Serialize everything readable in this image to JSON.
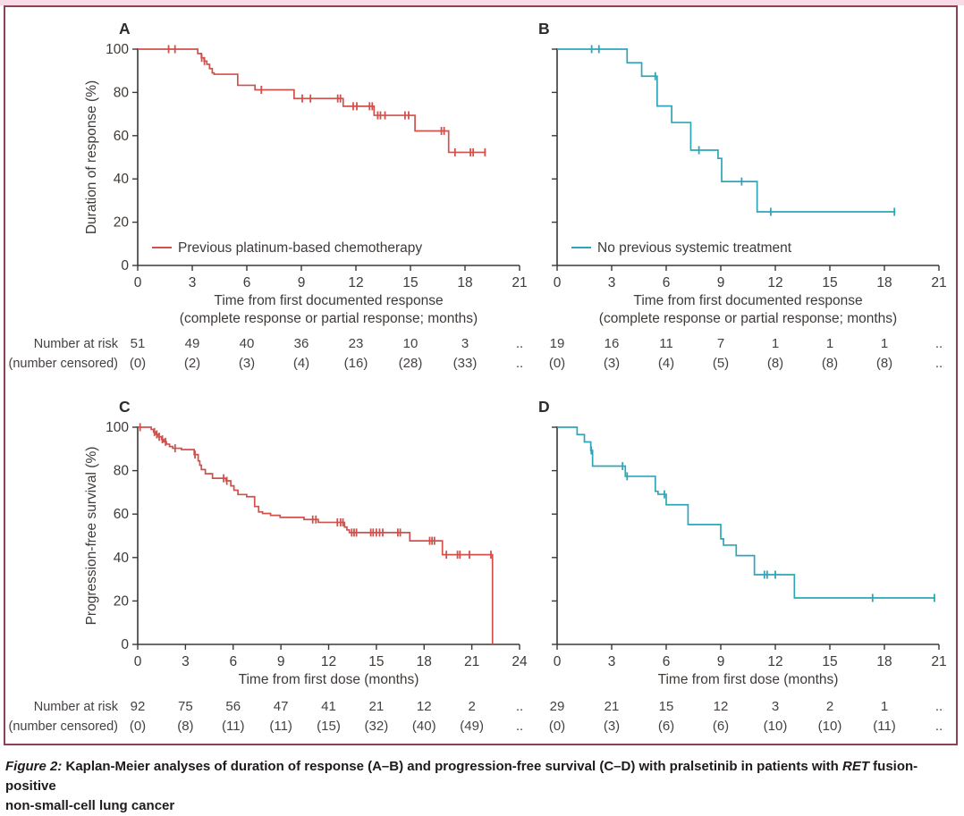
{
  "figure": {
    "caption": {
      "prefix": "Figure 2:",
      "body": " Kaplan-Meier analyses of duration of response (A–B) and progression-free survival (C–D) with pralsetinib in patients with ",
      "gene": "RET",
      "suffix": " fusion-positive",
      "line2": "non-small-cell lung cancer"
    }
  },
  "colors": {
    "red": "#d0514b",
    "teal": "#2fa6b8",
    "axis": "#3b3836",
    "border": "#8c4155",
    "top_strip": "#f8dbe7"
  },
  "chart_data": {
    "type": "km_multi_panel",
    "panels": [
      {
        "id": "A",
        "panel_label": "A",
        "type": "km_step",
        "color_key": "red",
        "y_label": "Duration of response (%)",
        "show_y_tick_labels": true,
        "y_ticks": [
          0,
          20,
          40,
          60,
          80,
          100
        ],
        "x_ticks": [
          0,
          3,
          6,
          9,
          12,
          15,
          18,
          21
        ],
        "x_max": 21,
        "x_label_lines": [
          "Time from first documented response",
          "(complete response or partial response; months)"
        ],
        "legend": "Previous platinum-based chemotherapy",
        "steps": [
          [
            0,
            100
          ],
          [
            3.3,
            98
          ],
          [
            3.5,
            96
          ],
          [
            3.65,
            94.5
          ],
          [
            3.8,
            93
          ],
          [
            3.95,
            91
          ],
          [
            4.1,
            89
          ],
          [
            4.2,
            88.4
          ],
          [
            5.5,
            83.3
          ],
          [
            6.45,
            81.2
          ],
          [
            8.6,
            77.2
          ],
          [
            11.3,
            73.6
          ],
          [
            13.0,
            69.4
          ],
          [
            15.25,
            62.2
          ],
          [
            17.1,
            52.3
          ]
        ],
        "end_time": 19.15,
        "censor_times": [
          1.7,
          2.05,
          3.52,
          3.67,
          6.8,
          9.05,
          9.5,
          11.0,
          11.15,
          11.85,
          12.05,
          12.75,
          12.9,
          13.2,
          13.35,
          13.6,
          14.7,
          14.9,
          16.7,
          16.85,
          17.45,
          18.3,
          18.45,
          19.1
        ],
        "risk": {
          "row1_label": "Number at risk",
          "row2_label": "(number censored)",
          "show_labels": true,
          "at_risk": [
            "51",
            "49",
            "40",
            "36",
            "23",
            "10",
            "3"
          ],
          "censored": [
            "(0)",
            "(2)",
            "(3)",
            "(4)",
            "(16)",
            "(28)",
            "(33)"
          ],
          "trail": ".."
        }
      },
      {
        "id": "B",
        "panel_label": "B",
        "type": "km_step",
        "color_key": "teal",
        "y_label": "",
        "show_y_tick_labels": false,
        "y_ticks": [
          0,
          20,
          40,
          60,
          80,
          100
        ],
        "x_ticks": [
          0,
          3,
          6,
          9,
          12,
          15,
          18,
          21
        ],
        "x_max": 21,
        "x_label_lines": [
          "Time from first documented response",
          "(complete response or partial response; months)"
        ],
        "legend": "No previous systemic treatment",
        "steps": [
          [
            0,
            100
          ],
          [
            3.85,
            93.7
          ],
          [
            4.65,
            87.5
          ],
          [
            5.5,
            73.7
          ],
          [
            6.3,
            66.1
          ],
          [
            7.35,
            53.3
          ],
          [
            8.85,
            49.5
          ],
          [
            9.05,
            38.8
          ],
          [
            11.0,
            24.8
          ]
        ],
        "end_time": 18.6,
        "censor_times": [
          1.9,
          2.3,
          5.4,
          7.8,
          10.15,
          11.75,
          18.55
        ],
        "risk": {
          "row1_label": "Number at risk",
          "row2_label": "(number censored)",
          "show_labels": false,
          "at_risk": [
            "19",
            "16",
            "11",
            "7",
            "1",
            "1",
            "1"
          ],
          "censored": [
            "(0)",
            "(3)",
            "(4)",
            "(5)",
            "(8)",
            "(8)",
            "(8)"
          ],
          "trail": ".."
        }
      },
      {
        "id": "C",
        "panel_label": "C",
        "type": "km_step",
        "color_key": "red",
        "y_label": "Progression-free survival (%)",
        "show_y_tick_labels": true,
        "y_ticks": [
          0,
          20,
          40,
          60,
          80,
          100
        ],
        "x_ticks": [
          0,
          3,
          6,
          9,
          12,
          15,
          18,
          21,
          24
        ],
        "x_max": 24,
        "x_label_lines": [
          "Time from first dose (months)"
        ],
        "legend": null,
        "steps": [
          [
            0,
            100
          ],
          [
            0.85,
            99
          ],
          [
            1.0,
            97.8
          ],
          [
            1.15,
            96.7
          ],
          [
            1.3,
            95.6
          ],
          [
            1.5,
            94.4
          ],
          [
            1.65,
            93.3
          ],
          [
            1.8,
            92.2
          ],
          [
            2.0,
            91.1
          ],
          [
            2.2,
            90.3
          ],
          [
            2.75,
            89.7
          ],
          [
            3.55,
            87.4
          ],
          [
            3.8,
            84.5
          ],
          [
            3.9,
            82.5
          ],
          [
            4.0,
            80.5
          ],
          [
            4.25,
            78.6
          ],
          [
            4.7,
            76.5
          ],
          [
            5.55,
            75.3
          ],
          [
            5.85,
            73
          ],
          [
            6.05,
            71
          ],
          [
            6.3,
            69
          ],
          [
            6.85,
            68
          ],
          [
            7.35,
            63.5
          ],
          [
            7.6,
            61
          ],
          [
            7.85,
            60.3
          ],
          [
            8.35,
            59.4
          ],
          [
            8.95,
            58.5
          ],
          [
            10.45,
            57.5
          ],
          [
            11.35,
            56.2
          ],
          [
            13.0,
            54
          ],
          [
            13.15,
            52.7
          ],
          [
            13.3,
            51.5
          ],
          [
            17.1,
            47.7
          ],
          [
            19.15,
            41.3
          ],
          [
            22.3,
            0
          ]
        ],
        "end_time": 22.3,
        "censor_times": [
          0.15,
          1.05,
          1.2,
          1.35,
          1.55,
          1.75,
          2.35,
          3.6,
          5.4,
          5.6,
          11.0,
          11.2,
          12.55,
          12.75,
          12.9,
          13.45,
          13.6,
          13.75,
          14.65,
          14.8,
          15.0,
          15.2,
          15.4,
          16.35,
          16.5,
          18.35,
          18.5,
          18.65,
          19.4,
          20.1,
          20.25,
          20.85,
          22.2
        ],
        "risk": {
          "row1_label": "Number at risk",
          "row2_label": "(number censored)",
          "show_labels": true,
          "at_risk": [
            "92",
            "75",
            "56",
            "47",
            "41",
            "21",
            "12",
            "2"
          ],
          "censored": [
            "(0)",
            "(8)",
            "(11)",
            "(11)",
            "(15)",
            "(32)",
            "(40)",
            "(49)"
          ],
          "trail": ".."
        }
      },
      {
        "id": "D",
        "panel_label": "D",
        "type": "km_step",
        "color_key": "teal",
        "y_label": "",
        "show_y_tick_labels": false,
        "y_ticks": [
          0,
          20,
          40,
          60,
          80,
          100
        ],
        "x_ticks": [
          0,
          3,
          6,
          9,
          12,
          15,
          18,
          21
        ],
        "x_max": 21,
        "x_label_lines": [
          "Time from first dose (months)"
        ],
        "legend": null,
        "steps": [
          [
            0,
            100
          ],
          [
            1.1,
            96.6
          ],
          [
            1.5,
            93.2
          ],
          [
            1.85,
            89.3
          ],
          [
            1.95,
            82.1
          ],
          [
            3.75,
            77.4
          ],
          [
            5.4,
            70.5
          ],
          [
            5.55,
            69.1
          ],
          [
            6.0,
            64.3
          ],
          [
            7.2,
            55.2
          ],
          [
            9.0,
            48.6
          ],
          [
            9.15,
            45.7
          ],
          [
            9.85,
            40.9
          ],
          [
            10.85,
            32.1
          ],
          [
            13.05,
            21.4
          ]
        ],
        "end_time": 20.8,
        "censor_times": [
          1.88,
          3.6,
          3.85,
          5.9,
          11.4,
          11.55,
          12.0,
          17.35,
          20.75
        ],
        "risk": {
          "row1_label": "Number at risk",
          "row2_label": "(number censored)",
          "show_labels": false,
          "at_risk": [
            "29",
            "21",
            "15",
            "12",
            "3",
            "2",
            "1"
          ],
          "censored": [
            "(0)",
            "(3)",
            "(6)",
            "(6)",
            "(10)",
            "(10)",
            "(11)"
          ],
          "trail": ".."
        }
      }
    ]
  }
}
